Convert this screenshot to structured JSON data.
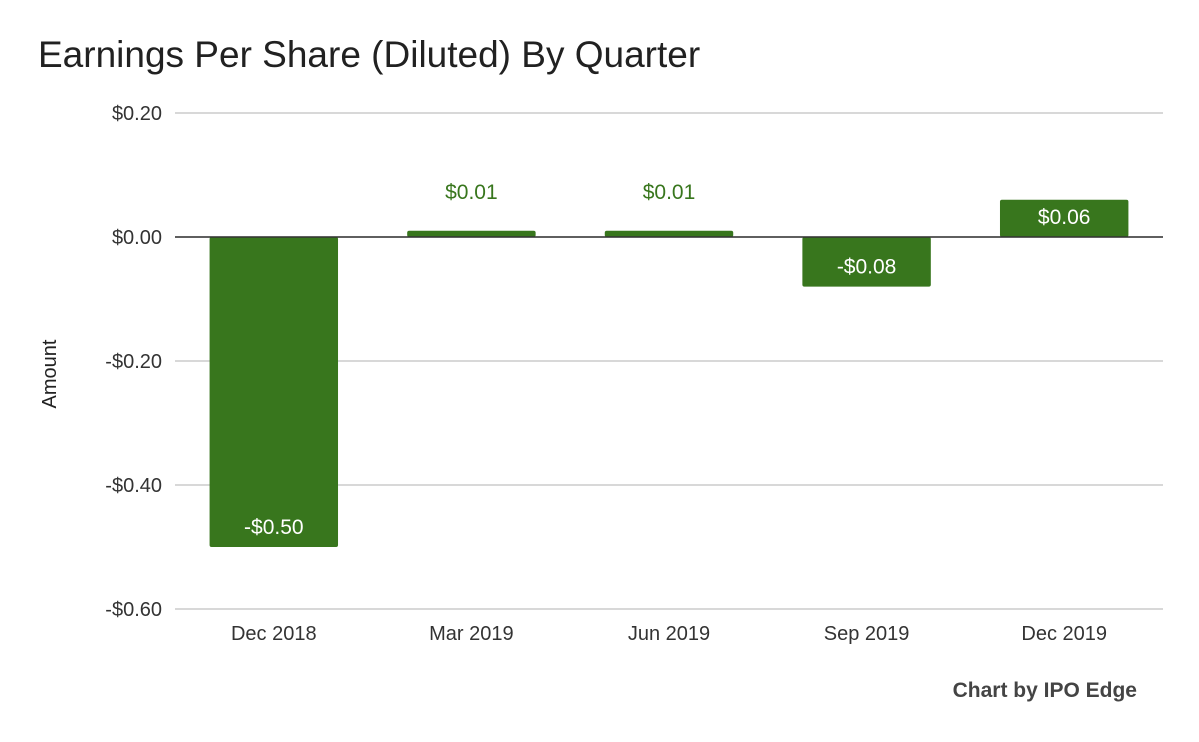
{
  "chart_data": {
    "type": "bar",
    "title": "Earnings Per Share (Diluted) By Quarter",
    "ylabel": "Amount",
    "xlabel": "",
    "categories": [
      "Dec 2018",
      "Mar 2019",
      "Jun 2019",
      "Sep 2019",
      "Dec 2019"
    ],
    "values": [
      -0.5,
      0.01,
      0.01,
      -0.08,
      0.06
    ],
    "data_labels": [
      "-$0.50",
      "$0.01",
      "$0.01",
      "-$0.08",
      "$0.06"
    ],
    "ylim": [
      -0.6,
      0.2
    ],
    "yticks": [
      0.2,
      0.0,
      -0.2,
      -0.4,
      -0.6
    ],
    "ytick_labels": [
      "$0.20",
      "$0.00",
      "-$0.20",
      "-$0.40",
      "-$0.60"
    ],
    "grid": true,
    "legend": "none",
    "colors": {
      "bar": "#38761d",
      "label_outside": "#38761d",
      "label_inside": "#ffffff",
      "grid": "#cccccc",
      "zero_line": "#333333"
    }
  },
  "credit": "Chart by IPO Edge"
}
